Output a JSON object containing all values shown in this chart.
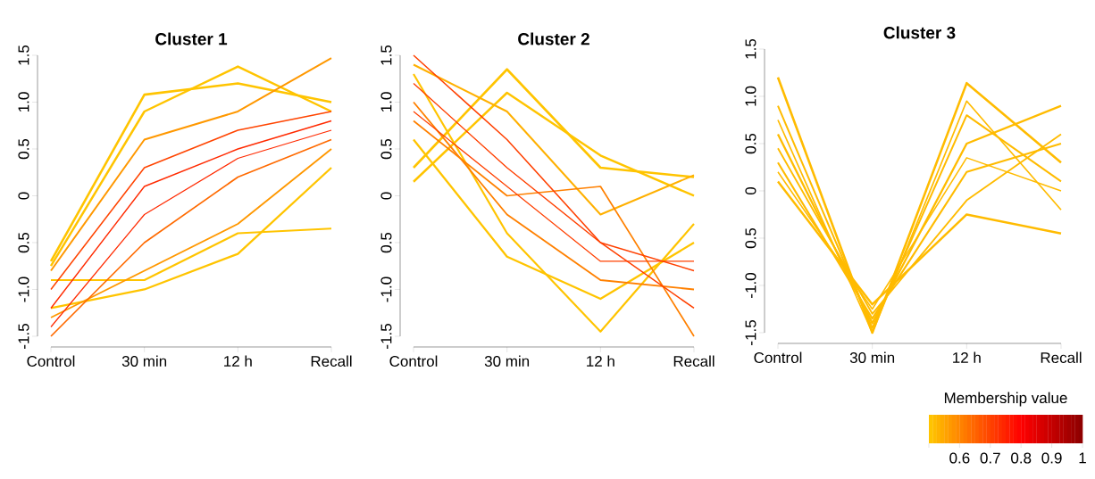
{
  "chart_data": [
    {
      "type": "line",
      "title": "Cluster 1",
      "categories": [
        "Control",
        "30 min",
        "12 h",
        "Recall"
      ],
      "ylim": [
        -1.5,
        1.5
      ],
      "yticks": [
        -1.5,
        {
          "value": -1,
          "label": "-1.0"
        },
        {
          "value": -0.5,
          "label": "0.5"
        },
        0,
        0.5,
        {
          "value": 1,
          "label": "1.0"
        },
        1.5
      ],
      "series": [
        {
          "color": "#ffc400",
          "values": [
            -0.7,
            1.08,
            1.2,
            1.0
          ]
        },
        {
          "color": "#ffc400",
          "values": [
            -0.75,
            0.9,
            1.38,
            0.9
          ]
        },
        {
          "color": "#ffc400",
          "values": [
            -1.2,
            -1.0,
            -0.62,
            0.3
          ]
        },
        {
          "color": "#ffc400",
          "values": [
            -0.9,
            -0.9,
            -0.4,
            -0.35
          ]
        },
        {
          "color": "#ff9800",
          "values": [
            -0.8,
            0.6,
            0.9,
            1.47
          ]
        },
        {
          "color": "#ff9800",
          "values": [
            -1.3,
            -0.8,
            -0.3,
            0.5
          ]
        },
        {
          "color": "#ff6a00",
          "values": [
            -1.5,
            -0.5,
            0.2,
            0.6
          ]
        },
        {
          "color": "#ff4400",
          "values": [
            -1.0,
            0.3,
            0.7,
            0.9
          ]
        },
        {
          "color": "#ff2a00",
          "values": [
            -1.2,
            0.1,
            0.5,
            0.8
          ]
        },
        {
          "color": "#ff2a00",
          "values": [
            -1.4,
            -0.2,
            0.4,
            0.7
          ]
        }
      ]
    },
    {
      "type": "line",
      "title": "Cluster 2",
      "categories": [
        "Control",
        "30 min",
        "12 h",
        "Recall"
      ],
      "ylim": [
        -1.5,
        1.5
      ],
      "yticks": [
        -1.5,
        {
          "value": -1,
          "label": "-1.0"
        },
        {
          "value": -0.5,
          "label": "0.5"
        },
        0,
        0.5,
        {
          "value": 1,
          "label": "1.0"
        },
        1.5
      ],
      "series": [
        {
          "color": "#ffc400",
          "values": [
            0.3,
            1.35,
            0.3,
            0.2
          ]
        },
        {
          "color": "#ffc400",
          "values": [
            0.15,
            1.1,
            0.43,
            0.0
          ]
        },
        {
          "color": "#ffc400",
          "values": [
            0.6,
            -0.65,
            -1.1,
            -0.5
          ]
        },
        {
          "color": "#ffc400",
          "values": [
            1.3,
            -0.4,
            -1.45,
            -0.3
          ]
        },
        {
          "color": "#ffb000",
          "values": [
            1.4,
            0.9,
            -0.2,
            0.22
          ]
        },
        {
          "color": "#ff8000",
          "values": [
            1.0,
            -0.2,
            -0.9,
            -1.0
          ]
        },
        {
          "color": "#ff8000",
          "values": [
            0.8,
            0.0,
            0.1,
            -1.5
          ]
        },
        {
          "color": "#ff4000",
          "values": [
            1.5,
            0.6,
            -0.5,
            -1.2
          ]
        },
        {
          "color": "#ff4000",
          "values": [
            1.2,
            0.3,
            -0.5,
            -0.8
          ]
        },
        {
          "color": "#ff4000",
          "values": [
            0.9,
            0.1,
            -0.7,
            -0.7
          ]
        }
      ]
    },
    {
      "type": "line",
      "title": "Cluster 3",
      "categories": [
        "Control",
        "30 min",
        "12 h",
        "Recall"
      ],
      "ylim": [
        -1.5,
        1.5
      ],
      "yticks": [
        -1.5,
        {
          "value": -1,
          "label": "-1.0"
        },
        {
          "value": -0.5,
          "label": "0.5"
        },
        0,
        0.5,
        {
          "value": 1,
          "label": "1.0"
        },
        1.5
      ],
      "clabel": "Membership value",
      "clim": [
        0.5,
        1
      ],
      "cticks": [
        {
          "value": 0.5,
          "label": null
        },
        0.6,
        0.7,
        0.8,
        0.9,
        1
      ],
      "series": [
        {
          "color": "#ffbb00",
          "values": [
            1.2,
            -1.5,
            1.14,
            0.3
          ]
        },
        {
          "color": "#ffbb00",
          "values": [
            0.1,
            -1.2,
            -0.25,
            -0.45
          ]
        },
        {
          "color": "#ffbb00",
          "values": [
            0.6,
            -1.4,
            0.5,
            0.9
          ]
        },
        {
          "color": "#ffbb00",
          "values": [
            0.3,
            -1.35,
            0.2,
            0.5
          ]
        },
        {
          "color": "#ffbb00",
          "values": [
            0.9,
            -1.45,
            0.8,
            0.1
          ]
        },
        {
          "color": "#ffbb00",
          "values": [
            0.45,
            -1.3,
            -0.1,
            0.6
          ]
        },
        {
          "color": "#ffbb00",
          "values": [
            0.75,
            -1.5,
            0.95,
            -0.2
          ]
        },
        {
          "color": "#ffbb00",
          "values": [
            0.2,
            -1.25,
            0.35,
            0.0
          ]
        }
      ]
    }
  ]
}
